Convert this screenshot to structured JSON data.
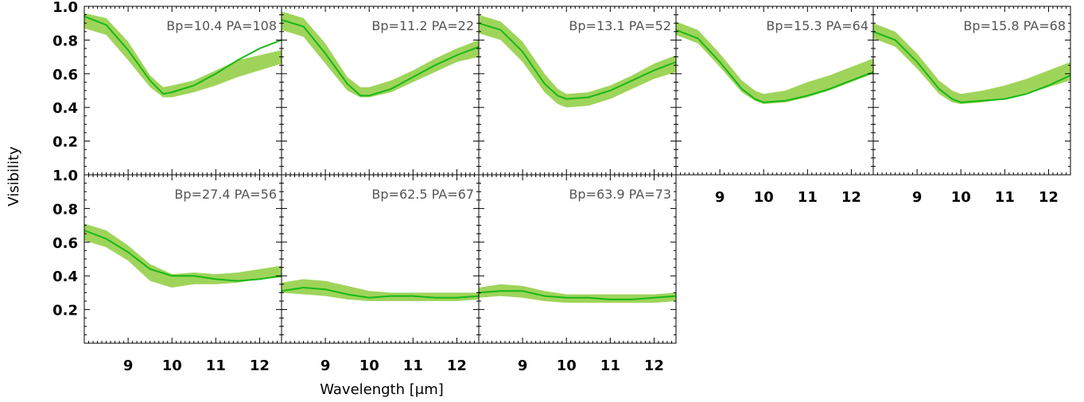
{
  "figure": {
    "xlabel": "Wavelength [μm]",
    "ylabel": "Visibility"
  },
  "colors": {
    "model_line": "#18b818",
    "data_band": "#9fd45a",
    "annotation": "#555555"
  },
  "chart_data": [
    {
      "type": "area",
      "annotation": "Bp=10.4 PA=108",
      "xlim": [
        8.0,
        12.5
      ],
      "ylim": [
        0.0,
        1.0
      ],
      "x": [
        8.0,
        8.5,
        9.0,
        9.5,
        9.8,
        10.0,
        10.5,
        11.0,
        11.5,
        12.0,
        12.5
      ],
      "band_low": [
        0.87,
        0.83,
        0.68,
        0.52,
        0.46,
        0.46,
        0.49,
        0.53,
        0.58,
        0.62,
        0.66
      ],
      "band_high": [
        0.96,
        0.93,
        0.79,
        0.59,
        0.52,
        0.53,
        0.56,
        0.62,
        0.68,
        0.71,
        0.74
      ],
      "model": [
        0.94,
        0.89,
        0.74,
        0.56,
        0.48,
        0.49,
        0.53,
        0.6,
        0.68,
        0.75,
        0.8
      ]
    },
    {
      "type": "area",
      "annotation": "Bp=11.2 PA=22",
      "xlim": [
        8.0,
        12.5
      ],
      "ylim": [
        0.0,
        1.0
      ],
      "x": [
        8.0,
        8.5,
        9.0,
        9.5,
        9.8,
        10.0,
        10.5,
        11.0,
        11.5,
        12.0,
        12.5
      ],
      "band_low": [
        0.86,
        0.82,
        0.66,
        0.5,
        0.46,
        0.46,
        0.49,
        0.55,
        0.61,
        0.67,
        0.7
      ],
      "band_high": [
        0.97,
        0.93,
        0.78,
        0.58,
        0.52,
        0.52,
        0.56,
        0.62,
        0.69,
        0.75,
        0.8
      ],
      "model": [
        0.92,
        0.88,
        0.72,
        0.54,
        0.47,
        0.47,
        0.51,
        0.58,
        0.65,
        0.71,
        0.76
      ]
    },
    {
      "type": "area",
      "annotation": "Bp=13.1 PA=52",
      "xlim": [
        8.0,
        12.5
      ],
      "ylim": [
        0.0,
        1.0
      ],
      "x": [
        8.0,
        8.5,
        9.0,
        9.5,
        9.8,
        10.0,
        10.5,
        11.0,
        11.5,
        12.0,
        12.5
      ],
      "band_low": [
        0.84,
        0.8,
        0.67,
        0.49,
        0.42,
        0.4,
        0.41,
        0.45,
        0.51,
        0.57,
        0.61
      ],
      "band_high": [
        0.95,
        0.91,
        0.79,
        0.6,
        0.51,
        0.48,
        0.49,
        0.53,
        0.59,
        0.66,
        0.71
      ],
      "model": [
        0.9,
        0.86,
        0.73,
        0.54,
        0.47,
        0.45,
        0.46,
        0.5,
        0.56,
        0.62,
        0.67
      ]
    },
    {
      "type": "area",
      "annotation": "Bp=15.3 PA=64",
      "xlim": [
        8.0,
        12.5
      ],
      "ylim": [
        0.0,
        1.0
      ],
      "x": [
        8.0,
        8.5,
        9.0,
        9.5,
        9.8,
        10.0,
        10.5,
        11.0,
        11.5,
        12.0,
        12.5
      ],
      "band_low": [
        0.83,
        0.78,
        0.64,
        0.49,
        0.44,
        0.42,
        0.43,
        0.46,
        0.5,
        0.55,
        0.6
      ],
      "band_high": [
        0.91,
        0.86,
        0.72,
        0.56,
        0.5,
        0.48,
        0.5,
        0.55,
        0.59,
        0.64,
        0.69
      ],
      "model": [
        0.86,
        0.81,
        0.67,
        0.51,
        0.45,
        0.43,
        0.44,
        0.47,
        0.51,
        0.56,
        0.61
      ]
    },
    {
      "type": "area",
      "annotation": "Bp=15.8 PA=68",
      "xlim": [
        8.0,
        12.5
      ],
      "ylim": [
        0.0,
        1.0
      ],
      "x": [
        8.0,
        8.5,
        9.0,
        9.5,
        9.8,
        10.0,
        10.5,
        11.0,
        11.5,
        12.0,
        12.5
      ],
      "band_low": [
        0.81,
        0.76,
        0.63,
        0.48,
        0.43,
        0.42,
        0.43,
        0.45,
        0.48,
        0.52,
        0.56
      ],
      "band_high": [
        0.9,
        0.85,
        0.72,
        0.56,
        0.5,
        0.48,
        0.5,
        0.53,
        0.57,
        0.62,
        0.67
      ],
      "model": [
        0.85,
        0.8,
        0.67,
        0.51,
        0.45,
        0.43,
        0.44,
        0.45,
        0.48,
        0.53,
        0.59
      ]
    },
    {
      "type": "area",
      "annotation": "Bp=27.4 PA=56",
      "xlim": [
        8.0,
        12.5
      ],
      "ylim": [
        0.0,
        1.0
      ],
      "x": [
        8.0,
        8.5,
        9.0,
        9.5,
        10.0,
        10.5,
        11.0,
        11.5,
        12.0,
        12.5
      ],
      "band_low": [
        0.61,
        0.57,
        0.49,
        0.37,
        0.33,
        0.35,
        0.35,
        0.36,
        0.38,
        0.39
      ],
      "band_high": [
        0.71,
        0.67,
        0.58,
        0.47,
        0.41,
        0.42,
        0.41,
        0.42,
        0.44,
        0.46
      ],
      "model": [
        0.67,
        0.62,
        0.54,
        0.44,
        0.4,
        0.4,
        0.38,
        0.37,
        0.38,
        0.4
      ]
    },
    {
      "type": "area",
      "annotation": "Bp=62.5 PA=67",
      "xlim": [
        8.0,
        12.5
      ],
      "ylim": [
        0.0,
        1.0
      ],
      "x": [
        8.0,
        8.5,
        9.0,
        9.5,
        10.0,
        10.5,
        11.0,
        11.5,
        12.0,
        12.5
      ],
      "band_low": [
        0.3,
        0.29,
        0.28,
        0.26,
        0.25,
        0.25,
        0.25,
        0.25,
        0.25,
        0.26
      ],
      "band_high": [
        0.36,
        0.38,
        0.37,
        0.34,
        0.31,
        0.3,
        0.3,
        0.3,
        0.3,
        0.3
      ],
      "model": [
        0.31,
        0.33,
        0.32,
        0.29,
        0.27,
        0.28,
        0.28,
        0.27,
        0.27,
        0.28
      ]
    },
    {
      "type": "area",
      "annotation": "Bp=63.9 PA=73",
      "xlim": [
        8.0,
        12.5
      ],
      "ylim": [
        0.0,
        1.0
      ],
      "x": [
        8.0,
        8.5,
        9.0,
        9.5,
        10.0,
        10.5,
        11.0,
        11.5,
        12.0,
        12.5
      ],
      "band_low": [
        0.27,
        0.28,
        0.27,
        0.25,
        0.24,
        0.24,
        0.24,
        0.24,
        0.24,
        0.25
      ],
      "band_high": [
        0.33,
        0.35,
        0.34,
        0.31,
        0.29,
        0.29,
        0.29,
        0.29,
        0.29,
        0.3
      ],
      "model": [
        0.3,
        0.31,
        0.31,
        0.28,
        0.27,
        0.27,
        0.26,
        0.26,
        0.27,
        0.28
      ]
    }
  ],
  "axes": {
    "yticks": [
      0.2,
      0.4,
      0.6,
      0.8,
      1.0
    ],
    "ytick_labels": [
      "0.2",
      "0.4",
      "0.6",
      "0.8",
      "1.0"
    ],
    "xticks": [
      9,
      10,
      11,
      12
    ],
    "xtick_labels": [
      "9",
      "10",
      "11",
      "12"
    ]
  }
}
